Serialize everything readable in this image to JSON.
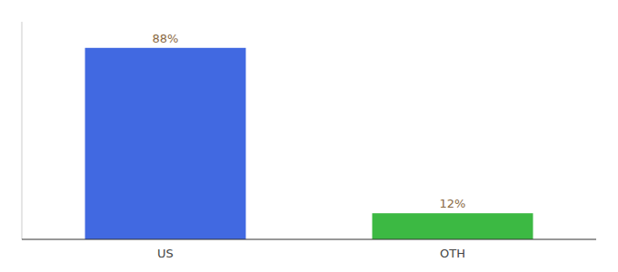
{
  "chart_data": {
    "type": "bar",
    "categories": [
      "US",
      "OTH"
    ],
    "values": [
      88,
      12
    ],
    "value_labels": [
      "88%",
      "12%"
    ],
    "colors": [
      "#4169e1",
      "#3cb943"
    ],
    "ylim": [
      0,
      100
    ],
    "data_labels": true,
    "tick_labels": "x"
  }
}
